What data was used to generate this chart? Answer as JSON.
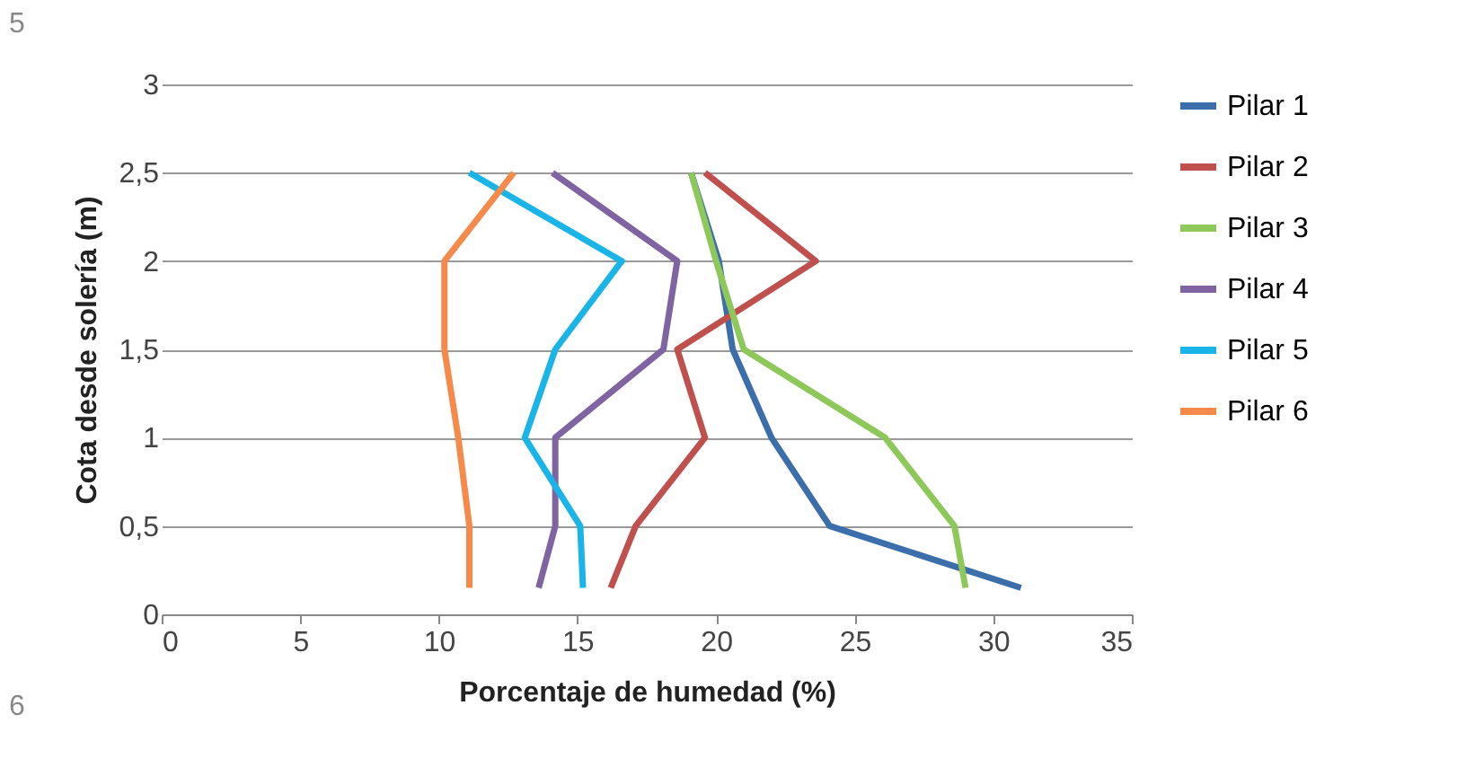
{
  "chart_data": {
    "type": "line",
    "xlabel": "Porcentaje de humedad (%)",
    "ylabel": "Cota desde solería (m)",
    "xlim": [
      0,
      35
    ],
    "xticks": [
      0,
      5,
      10,
      15,
      20,
      25,
      30,
      35
    ],
    "ylim": [
      0,
      3
    ],
    "yticks": [
      0,
      {
        "value": 0.5,
        "label": "0,5"
      },
      1,
      {
        "value": 1.5,
        "label": "1,5"
      },
      2,
      {
        "value": 2.5,
        "label": "2,5"
      },
      3
    ],
    "grid": "y",
    "legend": "right",
    "marker": "none",
    "line_style": "solid",
    "annotations": [
      "5",
      "6"
    ],
    "series": [
      {
        "name": "Pilar 1",
        "color": "#3c6eab",
        "x": [
          31.0,
          24.1,
          22.0,
          20.6,
          20.1,
          19.1
        ],
        "values": [
          0.15,
          0.5,
          1,
          1.5,
          2,
          2.5
        ]
      },
      {
        "name": "Pilar 2",
        "color": "#c0504d",
        "x": [
          16.2,
          17.1,
          19.6,
          18.6,
          23.6,
          19.6
        ],
        "values": [
          0.15,
          0.5,
          1,
          1.5,
          2,
          2.5
        ]
      },
      {
        "name": "Pilar 3",
        "color": "#8fc85a",
        "x": [
          29.0,
          28.6,
          26.1,
          21.0,
          20.0,
          19.1
        ],
        "values": [
          0.15,
          0.5,
          1,
          1.5,
          2,
          2.5
        ]
      },
      {
        "name": "Pilar 4",
        "color": "#8064a2",
        "x": [
          13.6,
          14.2,
          14.2,
          18.1,
          18.6,
          14.1
        ],
        "values": [
          0.15,
          0.5,
          1,
          1.5,
          2,
          2.5
        ]
      },
      {
        "name": "Pilar 5",
        "color": "#19b5e8",
        "x": [
          15.2,
          15.1,
          13.1,
          14.2,
          16.6,
          11.1
        ],
        "values": [
          0.15,
          0.5,
          1,
          1.5,
          2,
          2.5
        ]
      },
      {
        "name": "Pilar 6",
        "color": "#f58a4b",
        "x": [
          11.1,
          11.1,
          10.7,
          10.2,
          10.2,
          12.7
        ],
        "values": [
          0.15,
          0.5,
          1,
          1.5,
          2,
          2.5
        ]
      }
    ]
  }
}
